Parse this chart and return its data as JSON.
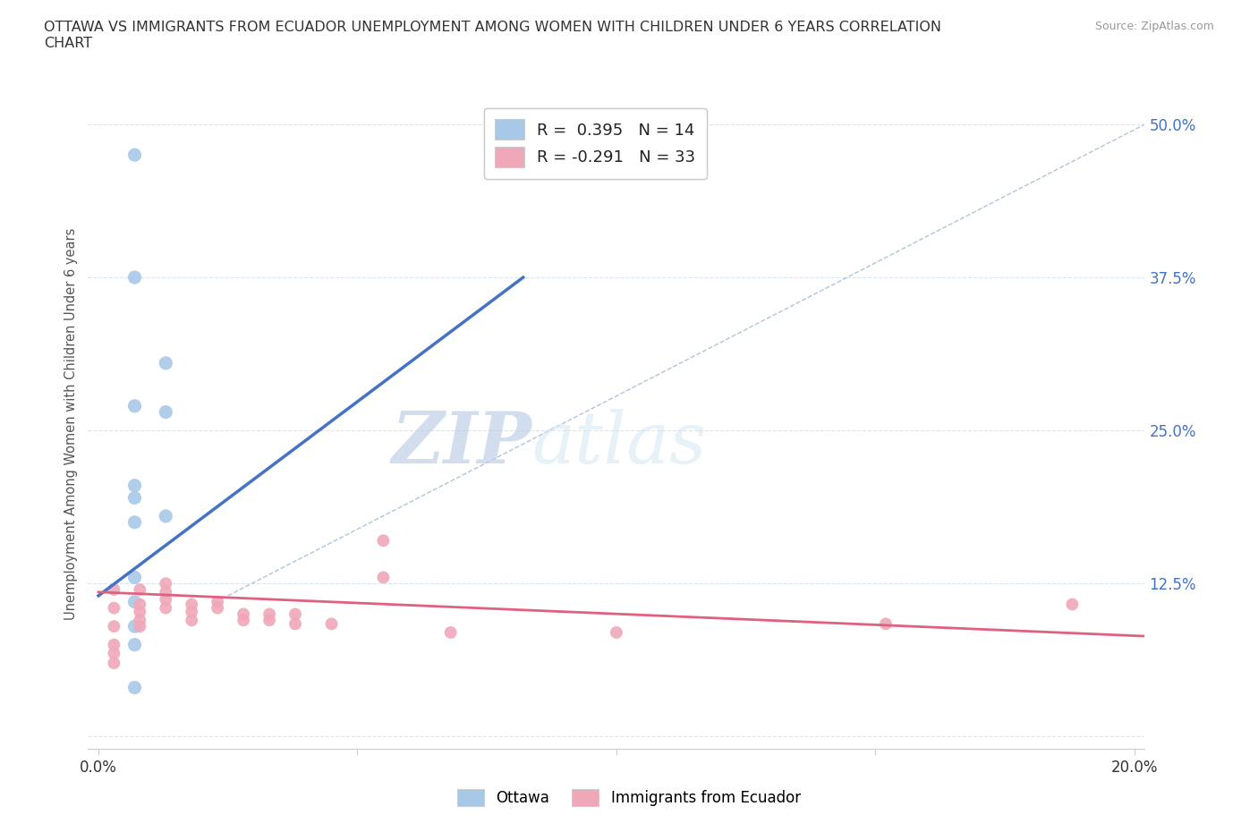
{
  "title": "OTTAWA VS IMMIGRANTS FROM ECUADOR UNEMPLOYMENT AMONG WOMEN WITH CHILDREN UNDER 6 YEARS CORRELATION\nCHART",
  "source": "Source: ZipAtlas.com",
  "xlabel": "",
  "ylabel": "Unemployment Among Women with Children Under 6 years",
  "xlim": [
    -0.002,
    0.202
  ],
  "ylim": [
    -0.01,
    0.52
  ],
  "xticks": [
    0.0,
    0.05,
    0.1,
    0.15,
    0.2
  ],
  "xticklabels": [
    "0.0%",
    "",
    "",
    "",
    "20.0%"
  ],
  "yticks": [
    0.0,
    0.125,
    0.25,
    0.375,
    0.5
  ],
  "yticklabels": [
    "",
    "12.5%",
    "25.0%",
    "37.5%",
    "50.0%"
  ],
  "ottawa_color": "#a8c8e8",
  "ecuador_color": "#f0a8b8",
  "ottawa_scatter": [
    [
      0.007,
      0.475
    ],
    [
      0.007,
      0.375
    ],
    [
      0.013,
      0.305
    ],
    [
      0.007,
      0.27
    ],
    [
      0.013,
      0.265
    ],
    [
      0.007,
      0.205
    ],
    [
      0.007,
      0.195
    ],
    [
      0.013,
      0.18
    ],
    [
      0.007,
      0.13
    ],
    [
      0.007,
      0.11
    ],
    [
      0.007,
      0.09
    ],
    [
      0.007,
      0.075
    ],
    [
      0.007,
      0.04
    ],
    [
      0.007,
      0.175
    ]
  ],
  "ecuador_scatter": [
    [
      0.003,
      0.12
    ],
    [
      0.003,
      0.105
    ],
    [
      0.003,
      0.09
    ],
    [
      0.003,
      0.075
    ],
    [
      0.003,
      0.068
    ],
    [
      0.003,
      0.06
    ],
    [
      0.008,
      0.12
    ],
    [
      0.008,
      0.108
    ],
    [
      0.008,
      0.102
    ],
    [
      0.008,
      0.095
    ],
    [
      0.008,
      0.09
    ],
    [
      0.013,
      0.125
    ],
    [
      0.013,
      0.118
    ],
    [
      0.013,
      0.112
    ],
    [
      0.013,
      0.105
    ],
    [
      0.018,
      0.108
    ],
    [
      0.018,
      0.102
    ],
    [
      0.018,
      0.095
    ],
    [
      0.023,
      0.11
    ],
    [
      0.023,
      0.105
    ],
    [
      0.028,
      0.1
    ],
    [
      0.028,
      0.095
    ],
    [
      0.033,
      0.1
    ],
    [
      0.033,
      0.095
    ],
    [
      0.038,
      0.1
    ],
    [
      0.038,
      0.092
    ],
    [
      0.045,
      0.092
    ],
    [
      0.055,
      0.16
    ],
    [
      0.055,
      0.13
    ],
    [
      0.068,
      0.085
    ],
    [
      0.1,
      0.085
    ],
    [
      0.152,
      0.092
    ],
    [
      0.188,
      0.108
    ]
  ],
  "ottawa_trend_x": [
    0.0,
    0.082
  ],
  "ottawa_trend_y": [
    0.115,
    0.375
  ],
  "ecuador_trend_x": [
    0.0,
    0.202
  ],
  "ecuador_trend_y": [
    0.118,
    0.082
  ],
  "ref_line_x": [
    0.025,
    0.202
  ],
  "ref_line_y": [
    0.115,
    0.5
  ],
  "legend_ottawa_label": "R =  0.395   N = 14",
  "legend_ecuador_label": "R = -0.291   N = 33",
  "watermark_zip": "ZIP",
  "watermark_atlas": "atlas",
  "background_color": "#ffffff",
  "grid_color": "#d8e4f0"
}
